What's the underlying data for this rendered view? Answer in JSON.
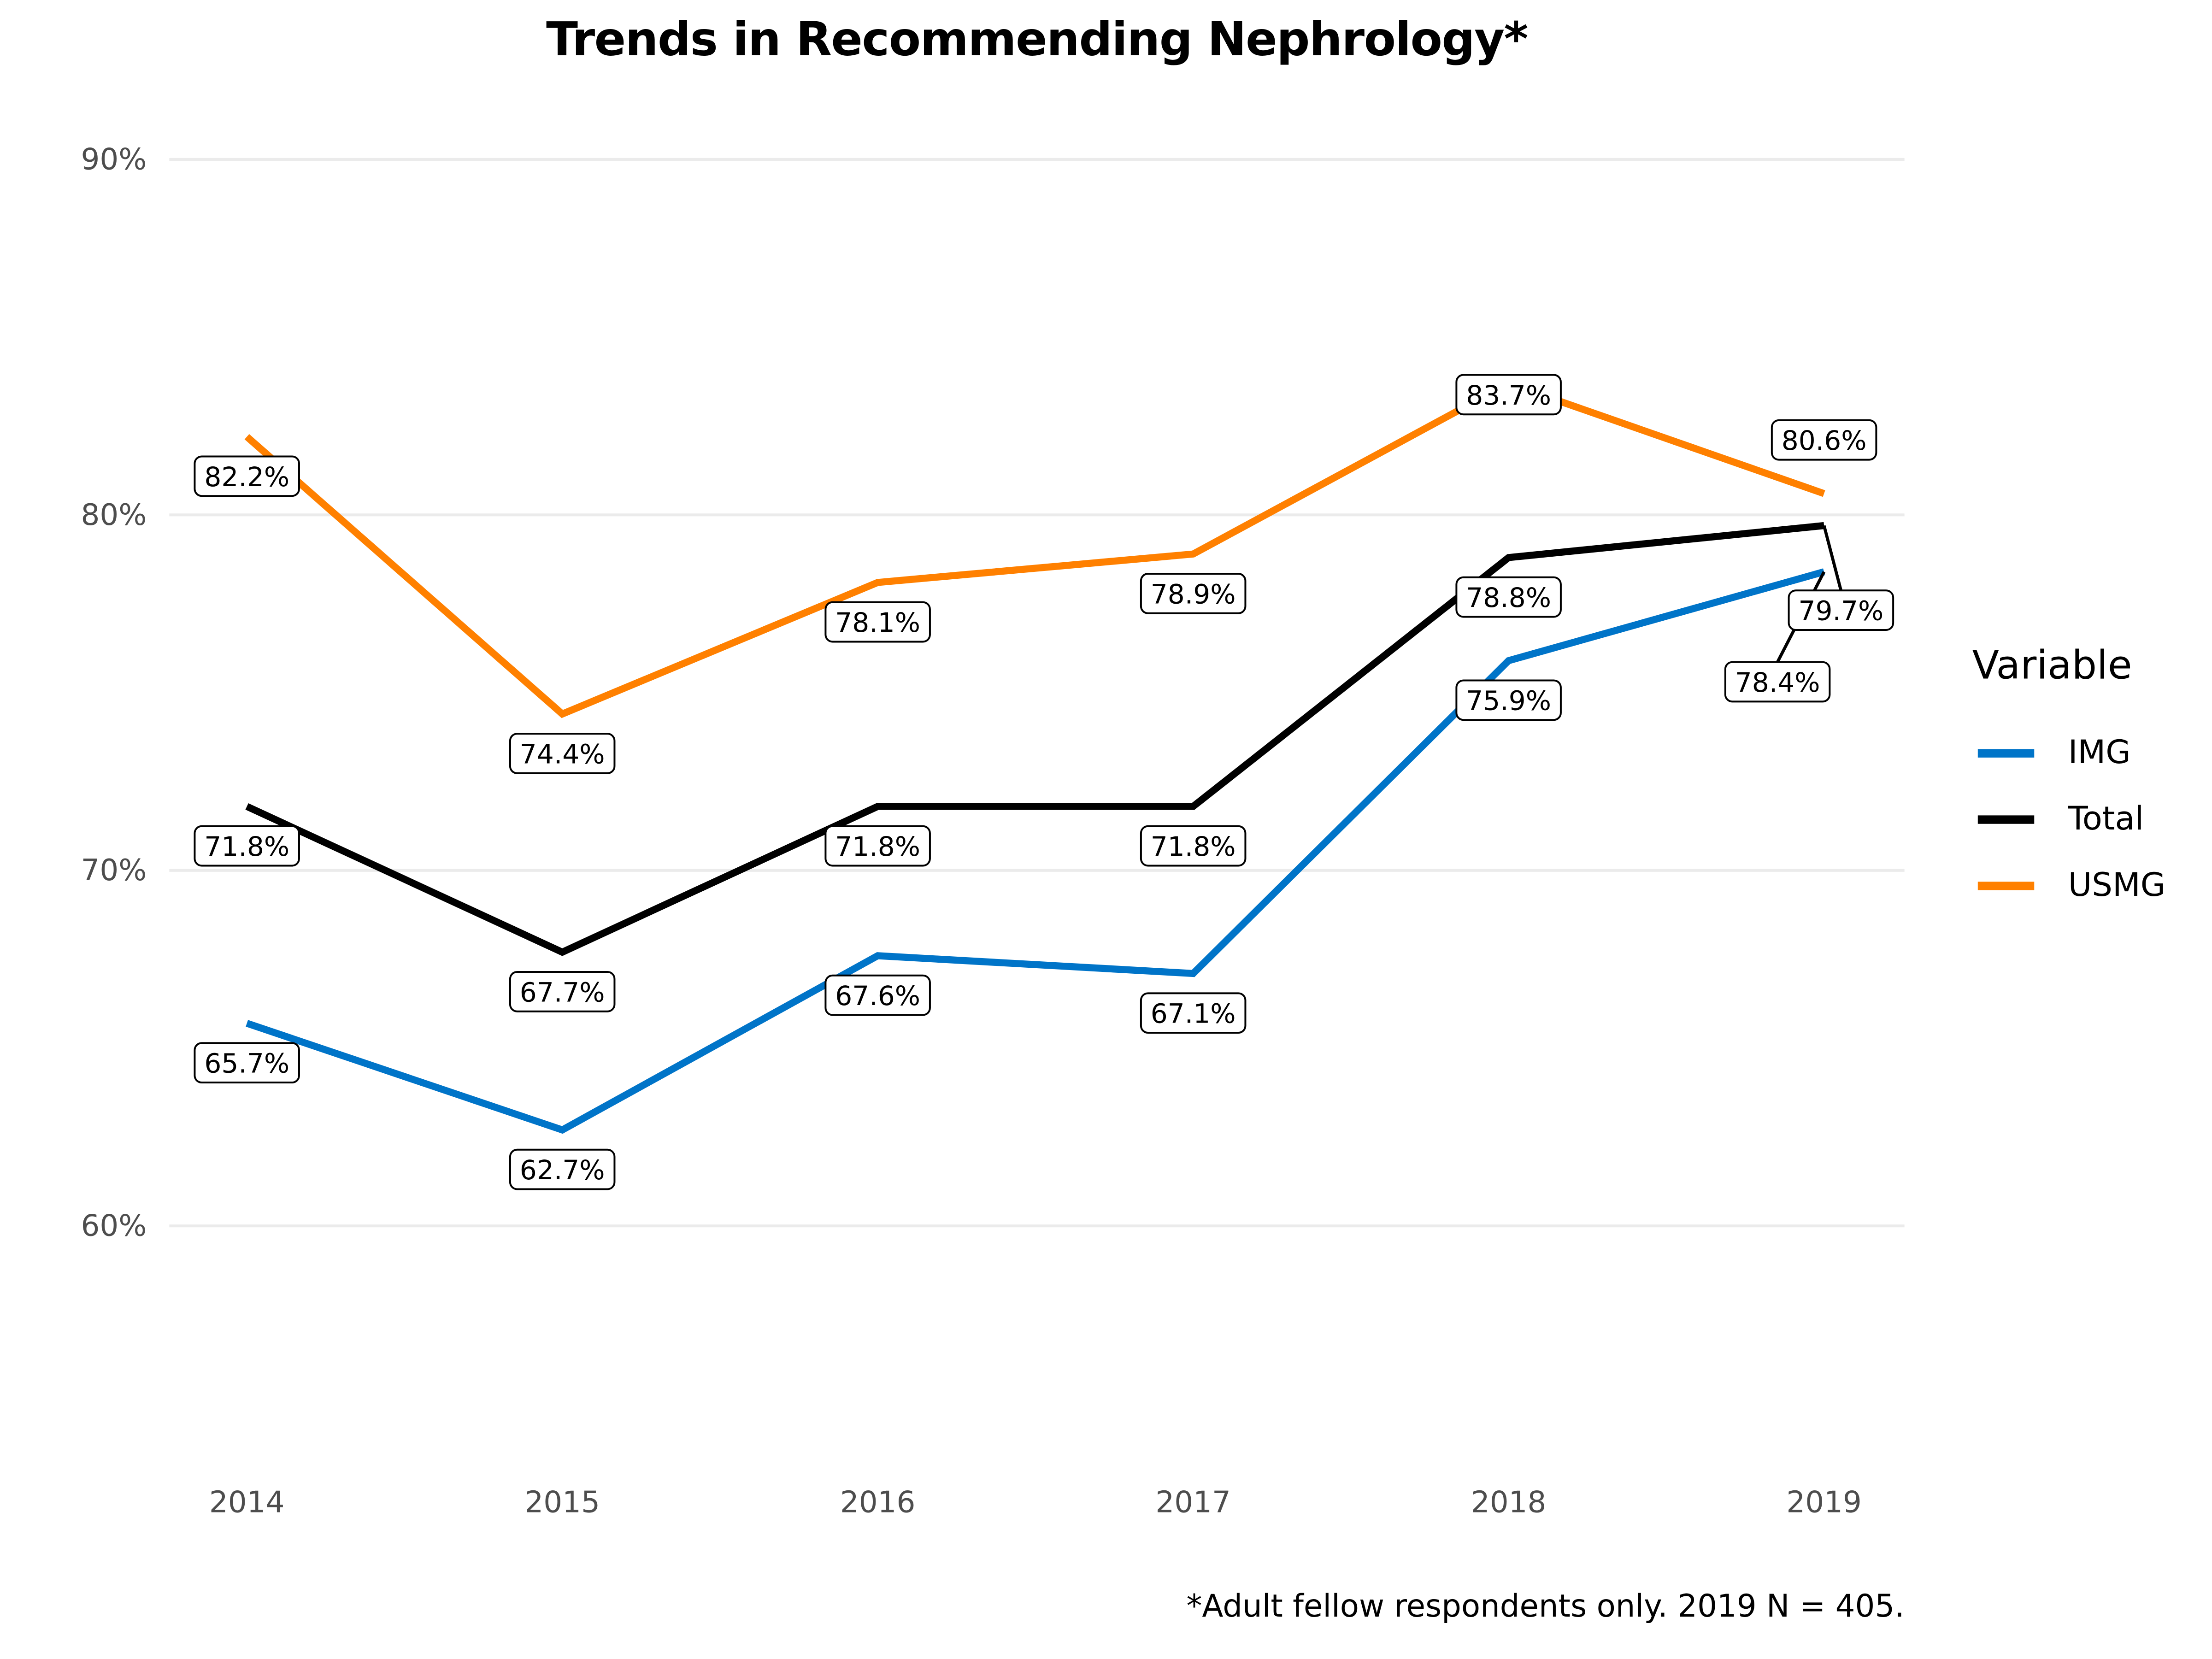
{
  "chart_data": {
    "type": "line",
    "title": "Trends in Recommending Nephrology*",
    "xlabel": "",
    "ylabel": "",
    "x": [
      "2014",
      "2015",
      "2016",
      "2017",
      "2018",
      "2019"
    ],
    "ylim": [
      55,
      90
    ],
    "yticks": [
      60,
      70,
      80,
      90
    ],
    "ytick_labels": [
      "60%",
      "70%",
      "80%",
      "90%"
    ],
    "grid": "horizontal major",
    "legend": {
      "title": "Variable",
      "placement": "right",
      "entries": [
        "IMG",
        "Total",
        "USMG"
      ]
    },
    "series": [
      {
        "name": "IMG",
        "color": "#0074C8",
        "values": [
          65.7,
          62.7,
          67.6,
          67.1,
          75.9,
          78.4
        ],
        "labels": [
          "65.7%",
          "62.7%",
          "67.6%",
          "67.1%",
          "75.9%",
          "78.4%"
        ]
      },
      {
        "name": "Total",
        "color": "#000000",
        "values": [
          71.8,
          67.7,
          71.8,
          71.8,
          78.8,
          79.7
        ],
        "labels": [
          "71.8%",
          "67.7%",
          "71.8%",
          "71.8%",
          "78.8%",
          "79.7%"
        ]
      },
      {
        "name": "USMG",
        "color": "#FF8000",
        "values": [
          82.2,
          74.4,
          78.1,
          78.9,
          83.7,
          80.6
        ],
        "labels": [
          "82.2%",
          "74.4%",
          "78.1%",
          "78.9%",
          "83.7%",
          "80.6%"
        ]
      }
    ],
    "caption": "*Adult fellow respondents only. 2019 N = 405."
  }
}
